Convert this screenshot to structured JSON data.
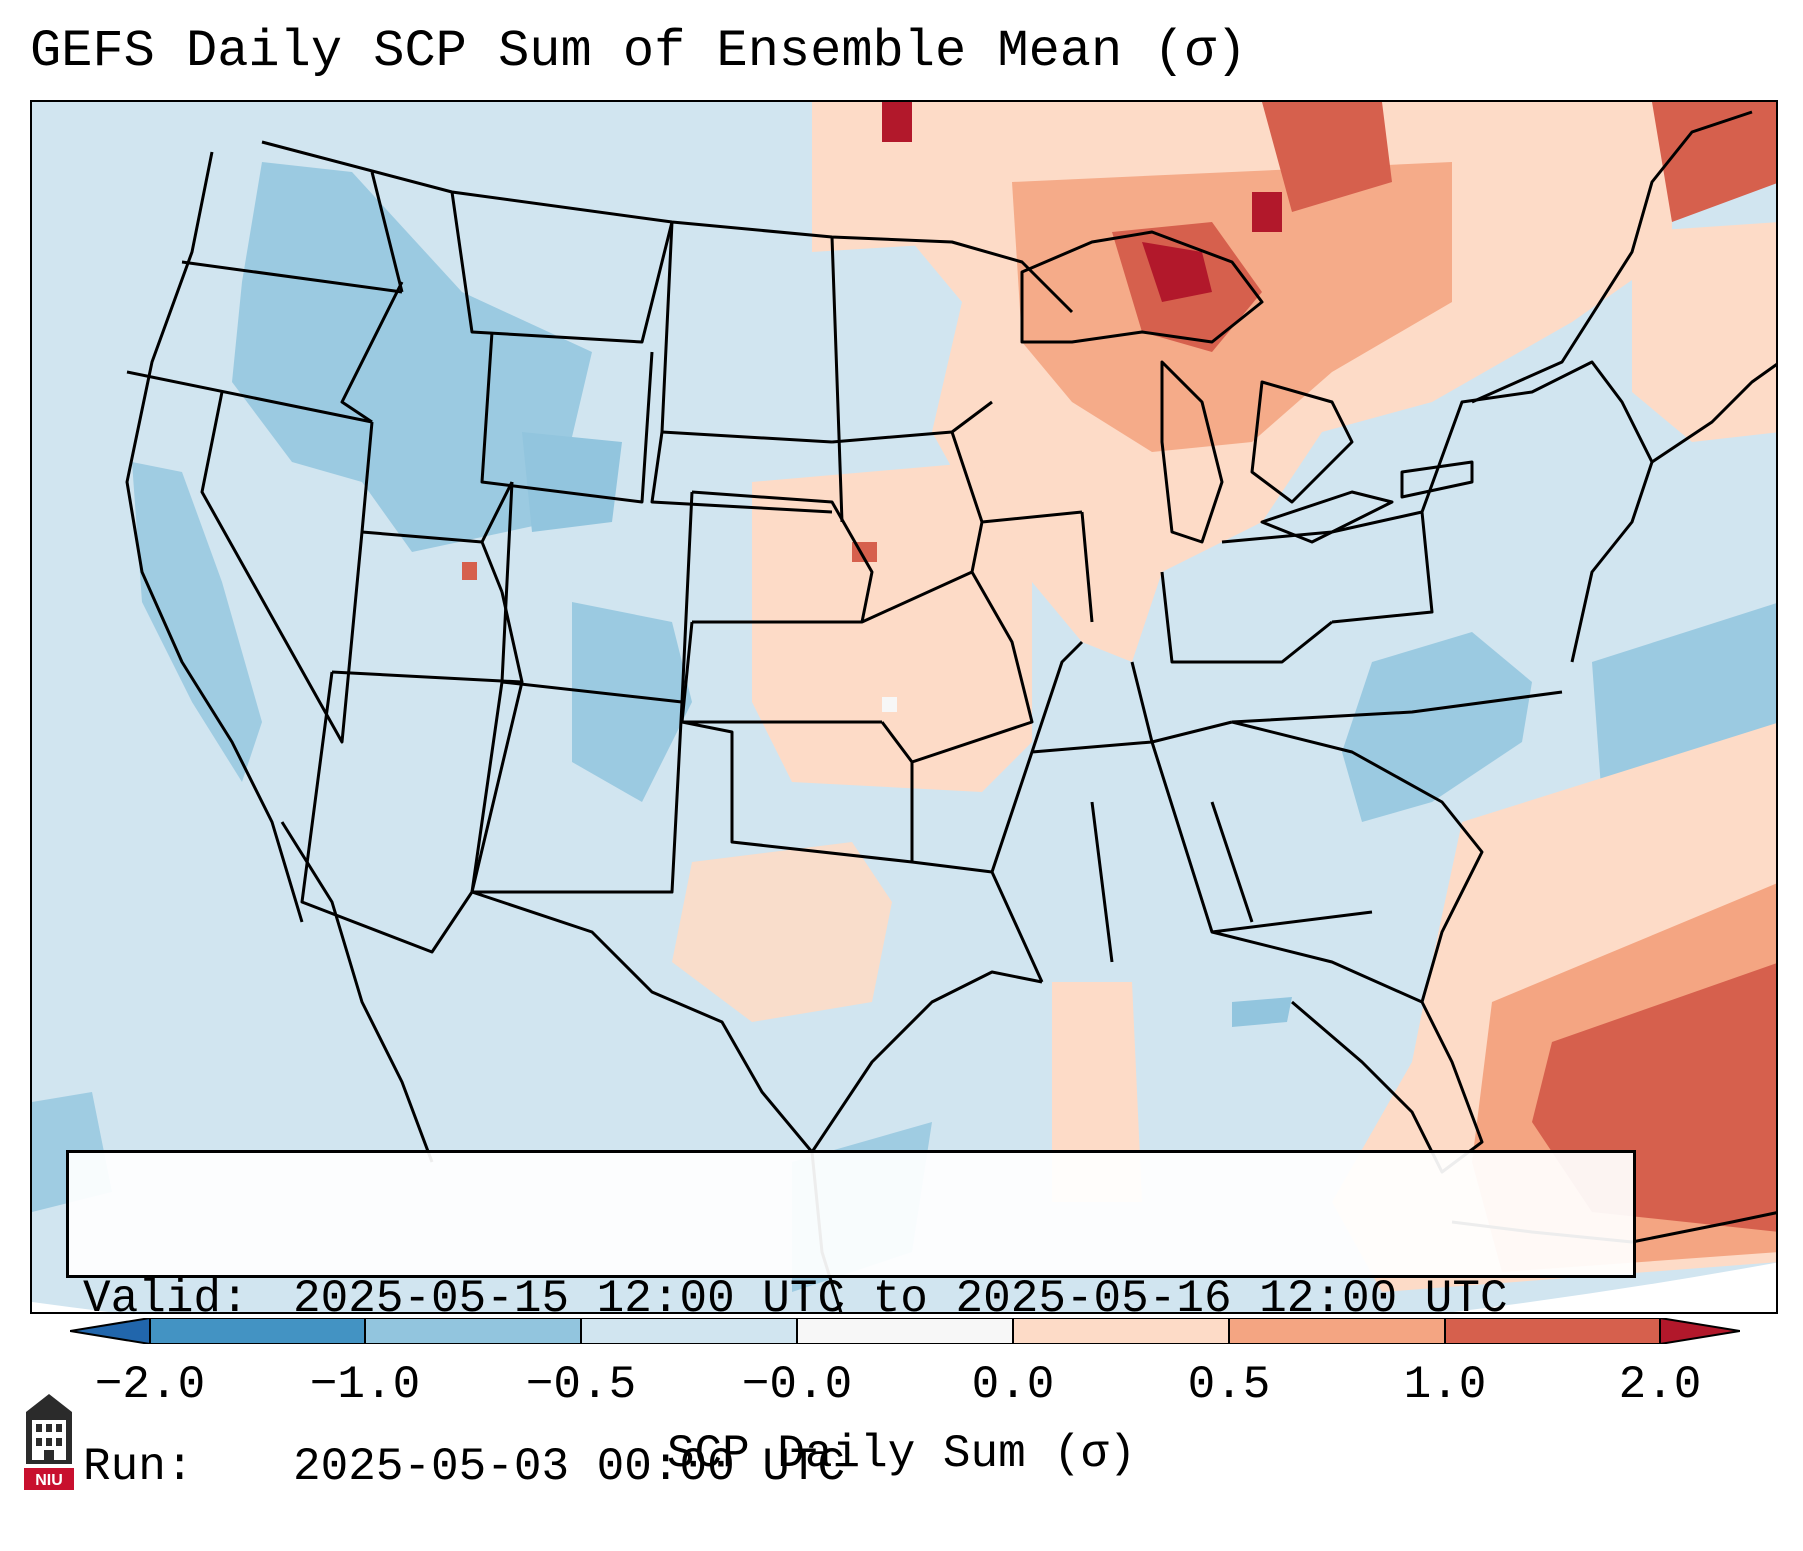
{
  "title": "GEFS Daily SCP Sum of Ensemble Mean (σ)",
  "info": {
    "valid_key": "Valid:",
    "valid_value": "2025-05-15 12:00 UTC to 2025-05-16 12:00 UTC",
    "run_key": "Run:",
    "run_value": "2025-05-03 00:00 UTC"
  },
  "colorbar": {
    "label": "SCP Daily Sum (σ)",
    "ticks": [
      "−2.0",
      "−1.0",
      "−0.5",
      "−0.0",
      "0.0",
      "0.5",
      "1.0",
      "2.0"
    ],
    "colors": {
      "below_min": "#2166ac",
      "bin_1": "#4393c3",
      "bin_2": "#92c5de",
      "bin_3": "#d1e5f0",
      "bin_4": "#f7f7f7",
      "bin_5": "#fddbc7",
      "bin_6": "#f4a582",
      "bin_7": "#d6604d",
      "above_max": "#b2182b"
    }
  },
  "logo": {
    "text": "NIU",
    "color": "#c8102e"
  }
}
